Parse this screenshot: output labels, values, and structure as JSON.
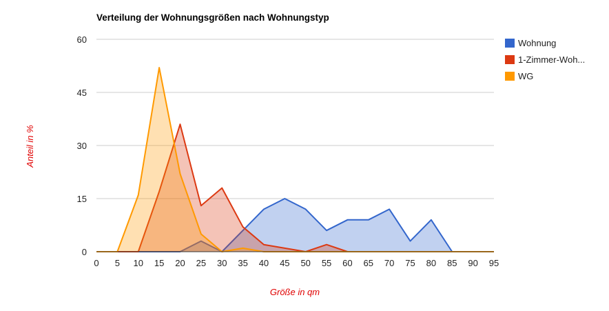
{
  "chart_data": {
    "type": "area",
    "title": "Verteilung der Wohnungsgrößen nach Wohnungstyp",
    "xlabel": "Größe in qm",
    "ylabel": "Anteil in %",
    "x": [
      0,
      5,
      10,
      15,
      20,
      25,
      30,
      35,
      40,
      45,
      50,
      55,
      60,
      65,
      70,
      75,
      80,
      85,
      90,
      95
    ],
    "xlim": [
      0,
      95
    ],
    "ylim": [
      0,
      60
    ],
    "yticks": [
      0,
      15,
      30,
      45,
      60
    ],
    "grid": true,
    "legend_position": "right",
    "series": [
      {
        "name": "Wohnung",
        "color": "#3366cc",
        "values": [
          0,
          0,
          0,
          0,
          0,
          3,
          0,
          6,
          12,
          15,
          12,
          6,
          9,
          9,
          12,
          3,
          9,
          0,
          0,
          0
        ]
      },
      {
        "name": "1-Zimmer-Woh...",
        "color": "#dc3912",
        "values": [
          0,
          0,
          0,
          17,
          36,
          13,
          18,
          7,
          2,
          1,
          0,
          2,
          0,
          0,
          0,
          0,
          0,
          0,
          0,
          0
        ]
      },
      {
        "name": "WG",
        "color": "#ff9900",
        "values": [
          0,
          0,
          16,
          52,
          22,
          5,
          0,
          1,
          0,
          0,
          0,
          0,
          0,
          0,
          0,
          0,
          0,
          0,
          0,
          0
        ]
      }
    ]
  }
}
